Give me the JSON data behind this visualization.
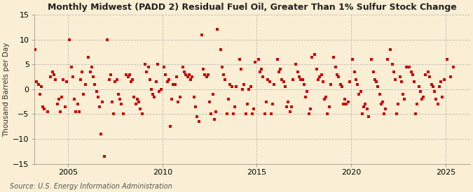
{
  "title": "Monthly Midwest (PADD 2) Residual Fuel Oil, Greater Than 1% Sulfur Stock Change",
  "ylabel": "Thousand Barrels per Day",
  "source": "Source: U.S. Energy Information Administration",
  "background_color": "#faefd4",
  "dot_color": "#cc0000",
  "ylim": [
    -15,
    15
  ],
  "yticks": [
    -15,
    -10,
    -5,
    0,
    5,
    10,
    15
  ],
  "xlim_start": 2003.2,
  "xlim_end": 2026.3,
  "xticks": [
    2005,
    2010,
    2015,
    2020,
    2025
  ],
  "data_points": [
    [
      2003.25,
      8.0
    ],
    [
      2003.42,
      1.0
    ],
    [
      2003.58,
      0.5
    ],
    [
      2003.75,
      -4.0
    ],
    [
      2003.92,
      -4.5
    ],
    [
      2004.08,
      2.5
    ],
    [
      2004.25,
      3.0
    ],
    [
      2004.42,
      -3.0
    ],
    [
      2004.58,
      -4.5
    ],
    [
      2004.75,
      2.0
    ],
    [
      2004.92,
      1.5
    ],
    [
      2005.08,
      10.0
    ],
    [
      2005.25,
      2.5
    ],
    [
      2005.42,
      -4.5
    ],
    [
      2005.58,
      -4.5
    ],
    [
      2005.75,
      3.5
    ],
    [
      2005.92,
      1.0
    ],
    [
      2006.08,
      6.5
    ],
    [
      2006.25,
      4.5
    ],
    [
      2006.42,
      1.0
    ],
    [
      2006.58,
      -1.5
    ],
    [
      2006.75,
      -9.0
    ],
    [
      2006.92,
      -13.5
    ],
    [
      2007.08,
      10.0
    ],
    [
      2007.25,
      3.0
    ],
    [
      2007.42,
      -5.0
    ],
    [
      2007.58,
      2.0
    ],
    [
      2007.75,
      -2.0
    ],
    [
      2007.92,
      -5.0
    ],
    [
      2008.08,
      3.0
    ],
    [
      2008.25,
      3.0
    ],
    [
      2008.42,
      2.0
    ],
    [
      2008.58,
      -3.0
    ],
    [
      2008.75,
      -2.5
    ],
    [
      2008.92,
      -5.0
    ],
    [
      2009.08,
      5.0
    ],
    [
      2009.25,
      4.5
    ],
    [
      2009.42,
      0.0
    ],
    [
      2009.58,
      -1.5
    ],
    [
      2009.75,
      5.0
    ],
    [
      2009.92,
      0.0
    ],
    [
      2010.08,
      4.5
    ],
    [
      2010.25,
      1.5
    ],
    [
      2010.42,
      -7.5
    ],
    [
      2010.58,
      1.0
    ],
    [
      2010.75,
      2.5
    ],
    [
      2010.92,
      -1.5
    ],
    [
      2011.08,
      4.5
    ],
    [
      2011.25,
      3.0
    ],
    [
      2011.42,
      3.0
    ],
    [
      2011.58,
      2.5
    ],
    [
      2011.75,
      -3.5
    ],
    [
      2011.92,
      -6.5
    ],
    [
      2012.08,
      11.0
    ],
    [
      2012.25,
      3.0
    ],
    [
      2012.42,
      3.0
    ],
    [
      2012.58,
      -5.0
    ],
    [
      2012.75,
      -6.0
    ],
    [
      2012.92,
      12.0
    ],
    [
      2013.08,
      8.0
    ],
    [
      2013.25,
      3.0
    ],
    [
      2013.42,
      -5.0
    ],
    [
      2013.58,
      1.0
    ],
    [
      2013.75,
      -5.0
    ],
    [
      2013.92,
      0.5
    ],
    [
      2014.08,
      6.0
    ],
    [
      2014.25,
      0.0
    ],
    [
      2014.42,
      -5.0
    ],
    [
      2014.58,
      0.0
    ],
    [
      2014.75,
      -5.0
    ],
    [
      2014.92,
      5.5
    ],
    [
      2015.08,
      6.0
    ],
    [
      2015.25,
      4.0
    ],
    [
      2015.42,
      -5.0
    ],
    [
      2015.58,
      2.0
    ],
    [
      2015.75,
      -5.0
    ],
    [
      2015.92,
      1.0
    ],
    [
      2016.08,
      6.0
    ],
    [
      2016.25,
      4.0
    ],
    [
      2016.42,
      1.5
    ],
    [
      2016.58,
      -3.5
    ],
    [
      2016.75,
      -4.5
    ],
    [
      2016.92,
      2.0
    ],
    [
      2017.08,
      5.0
    ],
    [
      2017.25,
      2.5
    ],
    [
      2017.42,
      2.0
    ],
    [
      2017.58,
      -1.5
    ],
    [
      2017.75,
      -5.0
    ],
    [
      2017.92,
      6.5
    ],
    [
      2018.08,
      7.0
    ],
    [
      2018.25,
      2.0
    ],
    [
      2018.42,
      3.0
    ],
    [
      2018.58,
      -2.0
    ],
    [
      2018.75,
      -5.0
    ],
    [
      2018.92,
      1.0
    ],
    [
      2019.08,
      6.5
    ],
    [
      2019.25,
      3.0
    ],
    [
      2019.42,
      1.0
    ],
    [
      2019.58,
      -3.0
    ],
    [
      2019.75,
      -3.0
    ],
    [
      2019.92,
      1.5
    ],
    [
      2020.08,
      6.0
    ],
    [
      2020.25,
      2.0
    ],
    [
      2020.42,
      -1.0
    ],
    [
      2020.58,
      -5.0
    ],
    [
      2020.75,
      -3.0
    ],
    [
      2020.92,
      -5.5
    ],
    [
      2021.08,
      6.0
    ],
    [
      2021.25,
      2.0
    ],
    [
      2021.42,
      0.5
    ],
    [
      2021.58,
      -3.0
    ],
    [
      2021.75,
      -5.0
    ],
    [
      2021.92,
      6.0
    ],
    [
      2022.08,
      8.0
    ],
    [
      2022.25,
      3.5
    ],
    [
      2022.42,
      -5.0
    ],
    [
      2022.58,
      2.5
    ],
    [
      2022.75,
      -1.0
    ],
    [
      2022.92,
      4.5
    ],
    [
      2023.08,
      4.5
    ],
    [
      2023.25,
      3.0
    ],
    [
      2023.42,
      -5.0
    ],
    [
      2023.58,
      0.5
    ],
    [
      2023.75,
      -2.0
    ],
    [
      2023.92,
      3.0
    ],
    [
      2024.08,
      3.5
    ],
    [
      2024.25,
      1.0
    ],
    [
      2024.42,
      -0.5
    ],
    [
      2024.58,
      -3.0
    ],
    [
      2024.75,
      1.5
    ],
    [
      2024.92,
      2.0
    ],
    [
      2025.08,
      6.0
    ],
    [
      2025.25,
      2.5
    ],
    [
      2025.42,
      4.5
    ],
    [
      2003.33,
      1.5
    ],
    [
      2003.5,
      -1.0
    ],
    [
      2003.67,
      -3.5
    ],
    [
      2004.17,
      3.5
    ],
    [
      2004.33,
      2.0
    ],
    [
      2004.5,
      -2.0
    ],
    [
      2004.67,
      -1.5
    ],
    [
      2004.83,
      -3.5
    ],
    [
      2005.17,
      4.5
    ],
    [
      2005.33,
      -2.0
    ],
    [
      2005.5,
      -3.0
    ],
    [
      2005.67,
      2.0
    ],
    [
      2005.83,
      -1.0
    ],
    [
      2006.17,
      3.5
    ],
    [
      2006.33,
      2.5
    ],
    [
      2006.5,
      -0.5
    ],
    [
      2006.67,
      -3.5
    ],
    [
      2006.83,
      -2.5
    ],
    [
      2007.17,
      2.0
    ],
    [
      2007.33,
      -2.5
    ],
    [
      2007.5,
      1.5
    ],
    [
      2007.67,
      -1.0
    ],
    [
      2007.83,
      -3.0
    ],
    [
      2008.17,
      2.5
    ],
    [
      2008.33,
      1.5
    ],
    [
      2008.5,
      -1.5
    ],
    [
      2008.67,
      -2.0
    ],
    [
      2008.83,
      -4.0
    ],
    [
      2009.17,
      3.5
    ],
    [
      2009.33,
      2.0
    ],
    [
      2009.5,
      -1.0
    ],
    [
      2009.67,
      1.5
    ],
    [
      2009.83,
      -0.5
    ],
    [
      2010.17,
      3.0
    ],
    [
      2010.33,
      2.0
    ],
    [
      2010.5,
      -2.0
    ],
    [
      2010.67,
      1.0
    ],
    [
      2010.83,
      -2.5
    ],
    [
      2011.17,
      3.5
    ],
    [
      2011.33,
      2.5
    ],
    [
      2011.5,
      2.0
    ],
    [
      2011.67,
      -1.5
    ],
    [
      2011.83,
      -5.5
    ],
    [
      2012.17,
      4.0
    ],
    [
      2012.33,
      2.5
    ],
    [
      2012.5,
      -2.5
    ],
    [
      2012.67,
      -1.0
    ],
    [
      2012.83,
      -4.5
    ],
    [
      2013.17,
      4.5
    ],
    [
      2013.33,
      2.0
    ],
    [
      2013.5,
      -2.0
    ],
    [
      2013.67,
      0.5
    ],
    [
      2013.83,
      -3.5
    ],
    [
      2014.17,
      4.0
    ],
    [
      2014.33,
      1.0
    ],
    [
      2014.5,
      -3.0
    ],
    [
      2014.67,
      0.5
    ],
    [
      2014.83,
      -4.0
    ],
    [
      2015.17,
      3.5
    ],
    [
      2015.33,
      2.5
    ],
    [
      2015.5,
      -2.5
    ],
    [
      2015.67,
      1.5
    ],
    [
      2015.83,
      -3.0
    ],
    [
      2016.17,
      3.5
    ],
    [
      2016.33,
      2.0
    ],
    [
      2016.5,
      0.5
    ],
    [
      2016.67,
      -2.5
    ],
    [
      2016.83,
      -3.5
    ],
    [
      2017.17,
      3.5
    ],
    [
      2017.33,
      2.0
    ],
    [
      2017.5,
      1.0
    ],
    [
      2017.67,
      -0.5
    ],
    [
      2017.83,
      -4.0
    ],
    [
      2018.17,
      4.0
    ],
    [
      2018.33,
      2.5
    ],
    [
      2018.5,
      1.5
    ],
    [
      2018.67,
      -1.5
    ],
    [
      2018.83,
      -3.5
    ],
    [
      2019.17,
      4.5
    ],
    [
      2019.33,
      2.5
    ],
    [
      2019.5,
      0.5
    ],
    [
      2019.67,
      -2.0
    ],
    [
      2019.83,
      -2.5
    ],
    [
      2020.17,
      3.5
    ],
    [
      2020.33,
      1.0
    ],
    [
      2020.5,
      -0.5
    ],
    [
      2020.67,
      -3.5
    ],
    [
      2020.83,
      -4.0
    ],
    [
      2021.17,
      3.5
    ],
    [
      2021.33,
      1.5
    ],
    [
      2021.5,
      -1.0
    ],
    [
      2021.67,
      -2.5
    ],
    [
      2021.83,
      -4.0
    ],
    [
      2022.17,
      5.0
    ],
    [
      2022.33,
      2.0
    ],
    [
      2022.5,
      -3.0
    ],
    [
      2022.67,
      1.5
    ],
    [
      2022.83,
      -2.0
    ],
    [
      2023.17,
      3.5
    ],
    [
      2023.33,
      1.5
    ],
    [
      2023.5,
      -3.0
    ],
    [
      2023.67,
      -0.5
    ],
    [
      2023.83,
      -1.5
    ],
    [
      2024.17,
      2.5
    ],
    [
      2024.33,
      0.5
    ],
    [
      2024.5,
      -2.0
    ],
    [
      2024.67,
      0.5
    ],
    [
      2024.83,
      -1.5
    ]
  ]
}
